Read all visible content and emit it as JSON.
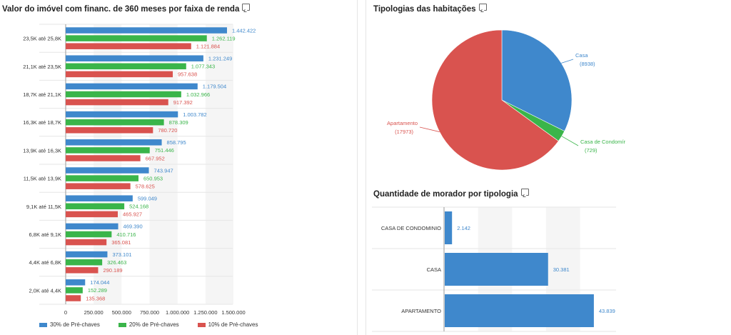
{
  "panels": {
    "left_title": "Valor do imóvel com financ. de 360 meses por faixa de renda",
    "pie_title": "Tipologias das habitações",
    "hbar_title": "Quantidade de morador por tipologia"
  },
  "chart_data": [
    {
      "type": "bar",
      "orientation": "horizontal",
      "title": "Valor do imóvel com financ. de 360 meses por faixa de renda",
      "categories": [
        "23,5K até 25,8K",
        "21,1K até 23,5K",
        "18,7K até 21,1K",
        "16,3K até 18,7K",
        "13,9K até 16,3K",
        "11,5K até 13,9K",
        "9,1K até 11,5K",
        "6,8K até 9,1K",
        "4,4K até 6,8K",
        "2,0K até 4,4K"
      ],
      "series": [
        {
          "name": "30% de Pré-chaves",
          "color": "#3f88cc",
          "values": [
            1442422,
            1231249,
            1179504,
            1003782,
            858795,
            743947,
            599049,
            469390,
            373101,
            174044
          ],
          "labels": [
            "1.442.422",
            "1.231.249",
            "1.179.504",
            "1.003.782",
            "858.795",
            "743.947",
            "599.049",
            "469.390",
            "373.101",
            "174.044"
          ]
        },
        {
          "name": "20% de Pré-chaves",
          "color": "#3ab54a",
          "values": [
            1262119,
            1077343,
            1032966,
            878309,
            751446,
            650953,
            524168,
            410716,
            326463,
            152289
          ],
          "labels": [
            "1.262.119",
            "1.077.343",
            "1.032.966",
            "878.309",
            "751.446",
            "650.953",
            "524.168",
            "410.716",
            "326.463",
            "152.289"
          ]
        },
        {
          "name": "10% de Pré-chaves",
          "color": "#d9534f",
          "values": [
            1121884,
            957638,
            917392,
            780720,
            667952,
            578625,
            465927,
            365081,
            290189,
            135368
          ],
          "labels": [
            "1.121.884",
            "957.638",
            "917.392",
            "780.720",
            "667.952",
            "578.625",
            "465.927",
            "365.081",
            "290.189",
            "135.368"
          ]
        }
      ],
      "xlim": [
        0,
        1500000
      ],
      "xticks": [
        0,
        250000,
        500000,
        750000,
        1000000,
        1250000,
        1500000
      ],
      "xtick_labels": [
        "0",
        "250.000",
        "500.000",
        "750.000",
        "1.000.000",
        "1.250.000",
        "1.500.000"
      ],
      "legend": "bottom-left",
      "grid": true
    },
    {
      "type": "pie",
      "title": "Tipologias das habitações",
      "slices": [
        {
          "label": "Casa",
          "value": 8938,
          "value_label": "(8938)",
          "color": "#3f88cc"
        },
        {
          "label": "Casa de Condomír",
          "value": 729,
          "value_label": "(729)",
          "color": "#3ab54a"
        },
        {
          "label": "Apartamento",
          "value": 17973,
          "value_label": "(17973)",
          "color": "#d9534f"
        }
      ]
    },
    {
      "type": "bar",
      "orientation": "horizontal",
      "title": "Quantidade de morador por tipologia",
      "categories": [
        "CASA DE CONDOMINIO",
        "CASA",
        "APARTAMENTO"
      ],
      "values": [
        2142,
        30381,
        43839
      ],
      "labels": [
        "2.142",
        "30.381",
        "43.839"
      ],
      "color": "#3f88cc",
      "xlim": [
        0,
        50000
      ],
      "grid": true
    }
  ]
}
